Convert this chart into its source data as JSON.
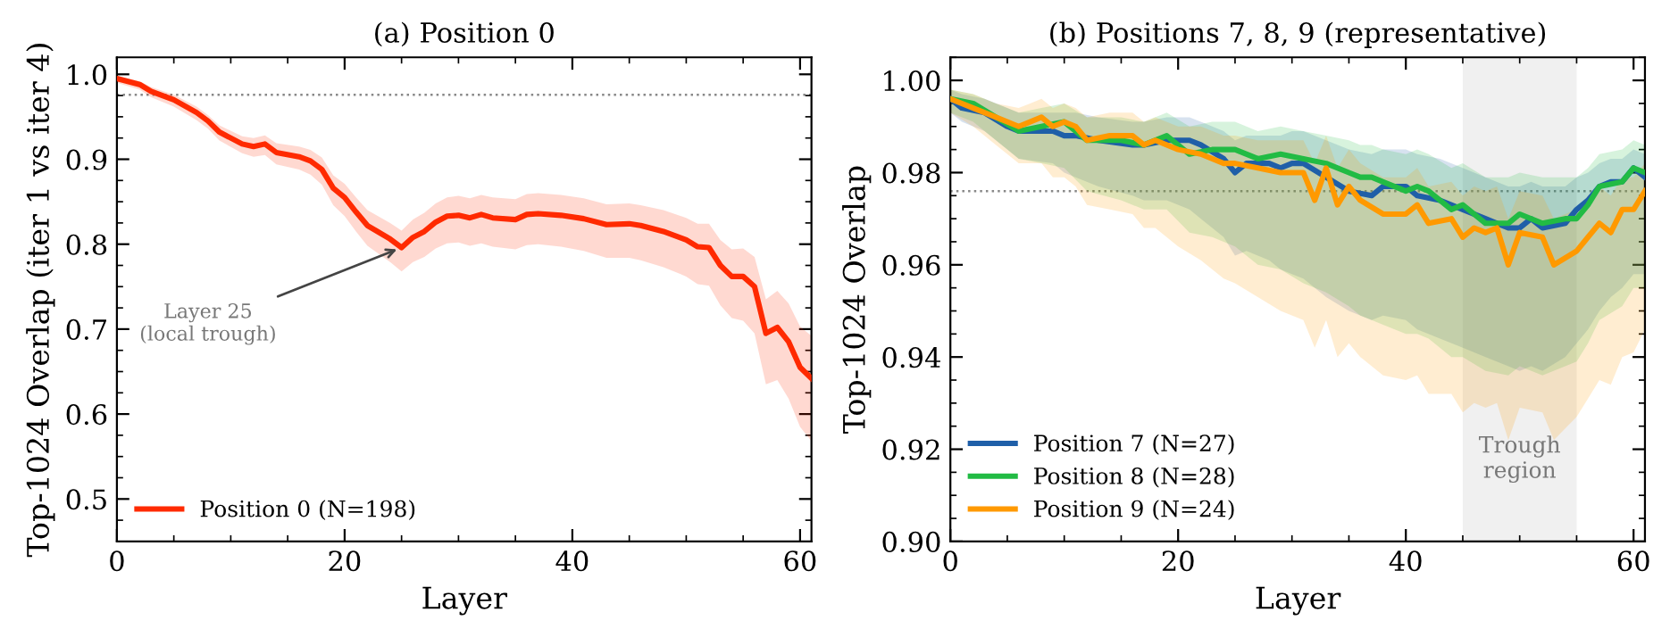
{
  "chart_data": [
    {
      "type": "line",
      "title": "(a) Position 0",
      "xlabel": "Layer",
      "ylabel": "Top-1024 Overlap (iter 1 vs iter 4)",
      "xlim": [
        0,
        61
      ],
      "xticks": [
        0,
        20,
        40,
        60
      ],
      "ylim": [
        0.45,
        1.02
      ],
      "yticks": [
        0.5,
        0.6,
        0.7,
        0.8,
        0.9,
        {
          "value": 1.0,
          "label": "1.0"
        }
      ],
      "grid": false,
      "legend": "bottom left",
      "marker": "none",
      "line_style": "solid",
      "ref_lines": [
        {
          "axis": "y",
          "value": 0.976,
          "color": "#888888",
          "line_style": "dotted"
        }
      ],
      "annotations": [
        {
          "text": "Layer 25\n(local trough)",
          "x": 25,
          "y": 0.796
        }
      ],
      "series": [
        {
          "name": "Position 0 (N=198)",
          "color": "#ff2a00",
          "x": [
            0,
            2,
            3,
            5,
            7,
            8,
            9,
            11,
            12,
            13,
            14,
            16,
            17,
            18,
            19,
            20,
            21,
            22,
            24,
            25,
            26,
            27,
            28,
            29,
            30,
            31,
            32,
            33,
            35,
            36,
            37,
            39,
            41,
            43,
            45,
            46,
            48,
            50,
            51,
            52,
            53,
            54,
            55,
            56,
            57,
            58,
            59,
            60,
            61
          ],
          "values": [
            0.995,
            0.988,
            0.98,
            0.97,
            0.955,
            0.945,
            0.932,
            0.918,
            0.915,
            0.918,
            0.908,
            0.903,
            0.898,
            0.888,
            0.866,
            0.855,
            0.838,
            0.822,
            0.806,
            0.796,
            0.808,
            0.815,
            0.826,
            0.833,
            0.834,
            0.831,
            0.835,
            0.831,
            0.829,
            0.835,
            0.836,
            0.834,
            0.83,
            0.823,
            0.824,
            0.822,
            0.815,
            0.805,
            0.797,
            0.796,
            0.775,
            0.762,
            0.762,
            0.75,
            0.695,
            0.702,
            0.685,
            0.655,
            0.642
          ],
          "upper": [
            0.998,
            0.992,
            0.985,
            0.976,
            0.962,
            0.952,
            0.94,
            0.927,
            0.925,
            0.928,
            0.919,
            0.915,
            0.911,
            0.902,
            0.881,
            0.871,
            0.855,
            0.84,
            0.825,
            0.816,
            0.829,
            0.837,
            0.848,
            0.855,
            0.857,
            0.854,
            0.858,
            0.855,
            0.853,
            0.859,
            0.86,
            0.858,
            0.854,
            0.847,
            0.848,
            0.846,
            0.84,
            0.831,
            0.824,
            0.824,
            0.805,
            0.794,
            0.795,
            0.785,
            0.735,
            0.745,
            0.73,
            0.703,
            0.692
          ],
          "lower": [
            0.99,
            0.982,
            0.973,
            0.962,
            0.946,
            0.936,
            0.922,
            0.907,
            0.903,
            0.905,
            0.894,
            0.888,
            0.882,
            0.87,
            0.846,
            0.833,
            0.815,
            0.798,
            0.779,
            0.768,
            0.779,
            0.785,
            0.795,
            0.801,
            0.802,
            0.798,
            0.801,
            0.797,
            0.794,
            0.799,
            0.8,
            0.797,
            0.792,
            0.784,
            0.784,
            0.781,
            0.773,
            0.762,
            0.753,
            0.751,
            0.728,
            0.713,
            0.71,
            0.695,
            0.635,
            0.64,
            0.618,
            0.585,
            0.568
          ]
        }
      ]
    },
    {
      "type": "line",
      "title": "(b) Positions 7, 8, 9 (representative)",
      "xlabel": "Layer",
      "ylabel": "Top-1024 Overlap",
      "xlim": [
        0,
        61
      ],
      "xticks": [
        0,
        20,
        40,
        60
      ],
      "ylim": [
        0.9,
        1.005
      ],
      "yticks": [
        {
          "value": 0.9,
          "label": "0.90"
        },
        {
          "value": 0.92,
          "label": "0.92"
        },
        {
          "value": 0.94,
          "label": "0.94"
        },
        {
          "value": 0.96,
          "label": "0.96"
        },
        {
          "value": 0.98,
          "label": "0.98"
        },
        {
          "value": 1.0,
          "label": "1.00"
        }
      ],
      "grid": false,
      "legend": "bottom left",
      "marker": "none",
      "line_style": "solid",
      "ref_lines": [
        {
          "axis": "y",
          "value": 0.976,
          "color": "#888888",
          "line_style": "dotted"
        }
      ],
      "bands": [
        {
          "axis": "x",
          "from": 45,
          "to": 55,
          "label": "Trough\nregion",
          "color": "#e6e6e6"
        }
      ],
      "series": [
        {
          "name": "Position 7 (N=27)",
          "color": "#1f5fa8",
          "x": [
            0,
            1,
            3,
            5,
            6,
            9,
            10,
            11,
            13,
            16,
            17,
            19,
            21,
            22,
            24,
            25,
            26,
            28,
            29,
            30,
            31,
            33,
            35,
            37,
            38,
            40,
            41,
            43,
            45,
            47,
            49,
            50,
            51,
            52,
            54,
            55,
            56,
            57,
            58,
            59,
            60,
            61
          ],
          "values": [
            0.996,
            0.994,
            0.993,
            0.99,
            0.989,
            0.989,
            0.988,
            0.988,
            0.987,
            0.986,
            0.986,
            0.987,
            0.987,
            0.986,
            0.983,
            0.98,
            0.982,
            0.982,
            0.981,
            0.982,
            0.982,
            0.979,
            0.976,
            0.975,
            0.977,
            0.977,
            0.975,
            0.974,
            0.972,
            0.97,
            0.968,
            0.968,
            0.97,
            0.968,
            0.969,
            0.972,
            0.974,
            0.977,
            0.978,
            0.978,
            0.981,
            0.979
          ],
          "upper": [
            0.998,
            0.997,
            0.996,
            0.994,
            0.993,
            0.993,
            0.993,
            0.993,
            0.992,
            0.991,
            0.991,
            0.992,
            0.992,
            0.991,
            0.989,
            0.987,
            0.988,
            0.988,
            0.988,
            0.989,
            0.989,
            0.987,
            0.985,
            0.984,
            0.985,
            0.985,
            0.984,
            0.983,
            0.981,
            0.979,
            0.977,
            0.977,
            0.978,
            0.977,
            0.977,
            0.979,
            0.98,
            0.982,
            0.983,
            0.983,
            0.985,
            0.984
          ],
          "lower": [
            0.993,
            0.991,
            0.989,
            0.985,
            0.983,
            0.982,
            0.98,
            0.979,
            0.977,
            0.975,
            0.974,
            0.974,
            0.972,
            0.97,
            0.966,
            0.962,
            0.963,
            0.961,
            0.959,
            0.958,
            0.957,
            0.953,
            0.95,
            0.948,
            0.949,
            0.948,
            0.946,
            0.944,
            0.942,
            0.94,
            0.938,
            0.937,
            0.938,
            0.937,
            0.94,
            0.943,
            0.946,
            0.95,
            0.953,
            0.955,
            0.958,
            0.958
          ]
        },
        {
          "name": "Position 8 (N=28)",
          "color": "#22bb44",
          "x": [
            0,
            2,
            4,
            6,
            8,
            10,
            12,
            15,
            17,
            19,
            21,
            23,
            25,
            27,
            29,
            31,
            33,
            35,
            36,
            37,
            38,
            40,
            41,
            42,
            44,
            45,
            47,
            49,
            50,
            52,
            54,
            55,
            56,
            57,
            59,
            60,
            61
          ],
          "values": [
            0.996,
            0.995,
            0.992,
            0.989,
            0.99,
            0.991,
            0.987,
            0.987,
            0.986,
            0.988,
            0.984,
            0.985,
            0.985,
            0.983,
            0.984,
            0.983,
            0.982,
            0.98,
            0.979,
            0.979,
            0.978,
            0.976,
            0.977,
            0.976,
            0.972,
            0.973,
            0.969,
            0.969,
            0.971,
            0.969,
            0.97,
            0.97,
            0.973,
            0.977,
            0.978,
            0.981,
            0.98
          ],
          "upper": [
            0.998,
            0.997,
            0.995,
            0.993,
            0.994,
            0.995,
            0.992,
            0.992,
            0.991,
            0.993,
            0.99,
            0.991,
            0.991,
            0.989,
            0.99,
            0.989,
            0.988,
            0.987,
            0.986,
            0.986,
            0.985,
            0.984,
            0.985,
            0.984,
            0.981,
            0.982,
            0.979,
            0.979,
            0.98,
            0.979,
            0.979,
            0.979,
            0.981,
            0.984,
            0.985,
            0.987,
            0.986
          ],
          "lower": [
            0.993,
            0.991,
            0.987,
            0.983,
            0.982,
            0.981,
            0.976,
            0.974,
            0.972,
            0.972,
            0.967,
            0.966,
            0.964,
            0.96,
            0.959,
            0.956,
            0.954,
            0.951,
            0.949,
            0.948,
            0.947,
            0.945,
            0.945,
            0.944,
            0.94,
            0.94,
            0.937,
            0.936,
            0.938,
            0.936,
            0.938,
            0.939,
            0.943,
            0.948,
            0.951,
            0.955,
            0.955
          ]
        },
        {
          "name": "Position 9 (N=24)",
          "color": "#ff9900",
          "x": [
            0,
            2,
            4,
            6,
            7,
            8,
            9,
            10,
            11,
            12,
            14,
            16,
            17,
            18,
            20,
            22,
            24,
            25,
            27,
            29,
            31,
            32,
            33,
            34,
            35,
            36,
            38,
            40,
            41,
            42,
            44,
            45,
            46,
            47,
            48,
            49,
            50,
            52,
            53,
            55,
            56,
            57,
            58,
            59,
            60,
            61
          ],
          "values": [
            0.996,
            0.994,
            0.992,
            0.99,
            0.991,
            0.992,
            0.99,
            0.991,
            0.99,
            0.987,
            0.988,
            0.988,
            0.986,
            0.987,
            0.985,
            0.984,
            0.982,
            0.982,
            0.981,
            0.98,
            0.98,
            0.974,
            0.981,
            0.973,
            0.977,
            0.974,
            0.971,
            0.971,
            0.973,
            0.969,
            0.97,
            0.966,
            0.968,
            0.967,
            0.968,
            0.96,
            0.967,
            0.966,
            0.96,
            0.963,
            0.966,
            0.969,
            0.967,
            0.972,
            0.972,
            0.976
          ],
          "upper": [
            0.998,
            0.997,
            0.995,
            0.994,
            0.995,
            0.996,
            0.994,
            0.995,
            0.994,
            0.992,
            0.993,
            0.993,
            0.991,
            0.992,
            0.99,
            0.99,
            0.988,
            0.988,
            0.987,
            0.987,
            0.987,
            0.982,
            0.988,
            0.981,
            0.985,
            0.982,
            0.979,
            0.979,
            0.981,
            0.977,
            0.978,
            0.975,
            0.977,
            0.976,
            0.977,
            0.97,
            0.976,
            0.975,
            0.97,
            0.972,
            0.975,
            0.977,
            0.975,
            0.979,
            0.979,
            0.982
          ],
          "lower": [
            0.993,
            0.99,
            0.986,
            0.982,
            0.982,
            0.982,
            0.979,
            0.979,
            0.977,
            0.973,
            0.972,
            0.971,
            0.968,
            0.968,
            0.964,
            0.961,
            0.957,
            0.956,
            0.953,
            0.95,
            0.948,
            0.942,
            0.948,
            0.94,
            0.943,
            0.94,
            0.936,
            0.935,
            0.936,
            0.932,
            0.932,
            0.928,
            0.93,
            0.929,
            0.93,
            0.922,
            0.929,
            0.928,
            0.922,
            0.927,
            0.931,
            0.935,
            0.934,
            0.94,
            0.941,
            0.946
          ]
        }
      ]
    }
  ]
}
